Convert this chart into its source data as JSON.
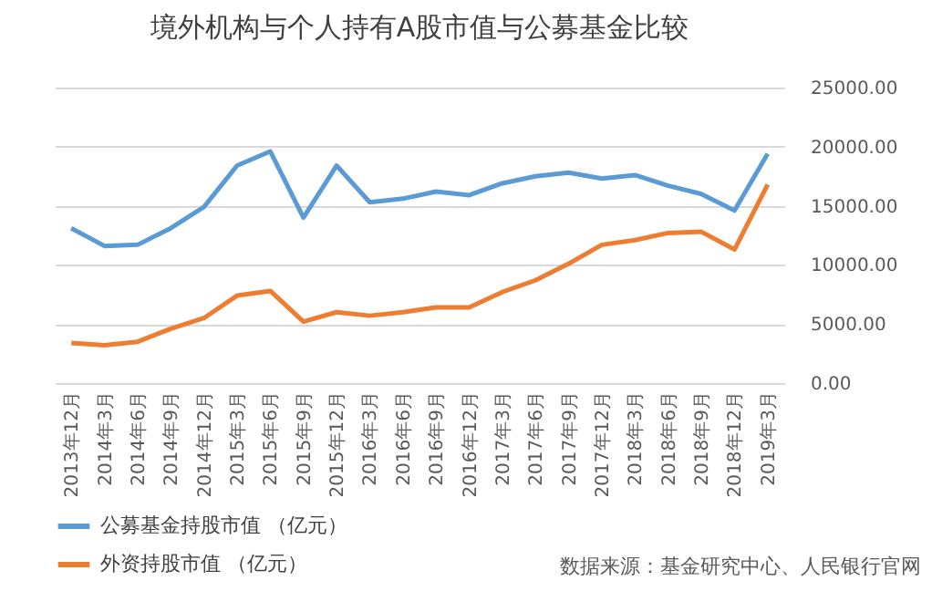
{
  "chart_data": {
    "type": "line",
    "title": "境外机构与个人持有A股市值与公募基金比较",
    "categories": [
      "2013年12月",
      "2014年3月",
      "2014年6月",
      "2014年9月",
      "2014年12月",
      "2015年3月",
      "2015年6月",
      "2015年9月",
      "2015年12月",
      "2016年3月",
      "2016年6月",
      "2016年9月",
      "2016年12月",
      "2017年3月",
      "2017年6月",
      "2017年9月",
      "2017年12月",
      "2018年3月",
      "2018年6月",
      "2018年9月",
      "2018年12月",
      "2019年3月"
    ],
    "series": [
      {
        "name": "公募基金持股市值 （亿元）",
        "color": "#5b9bd5",
        "values": [
          13100,
          11600,
          11700,
          13100,
          14900,
          18400,
          19600,
          14000,
          18400,
          15300,
          15600,
          16200,
          15900,
          16900,
          17500,
          17800,
          17300,
          17600,
          16700,
          16000,
          14600,
          19400
        ]
      },
      {
        "name": "外资持股市值 （亿元）",
        "color": "#ed7d31",
        "values": [
          3400,
          3200,
          3500,
          4600,
          5500,
          7400,
          7800,
          5200,
          6000,
          5700,
          6000,
          6400,
          6400,
          7700,
          8700,
          10100,
          11700,
          12100,
          12700,
          12800,
          11300,
          16800
        ]
      }
    ],
    "ylim": [
      0,
      25000
    ],
    "yticks": [
      {
        "value": 0,
        "label": "0.00"
      },
      {
        "value": 5000,
        "label": "5000.00"
      },
      {
        "value": 10000,
        "label": "10000.00"
      },
      {
        "value": 15000,
        "label": "15000.00"
      },
      {
        "value": 20000,
        "label": "20000.00"
      },
      {
        "value": 25000,
        "label": "25000.00"
      }
    ],
    "grid": "y",
    "legend": "bottom",
    "marker": "none",
    "line_style": "solid",
    "annotations": [
      "数据来源：基金研究中心、人民银行官网"
    ]
  }
}
